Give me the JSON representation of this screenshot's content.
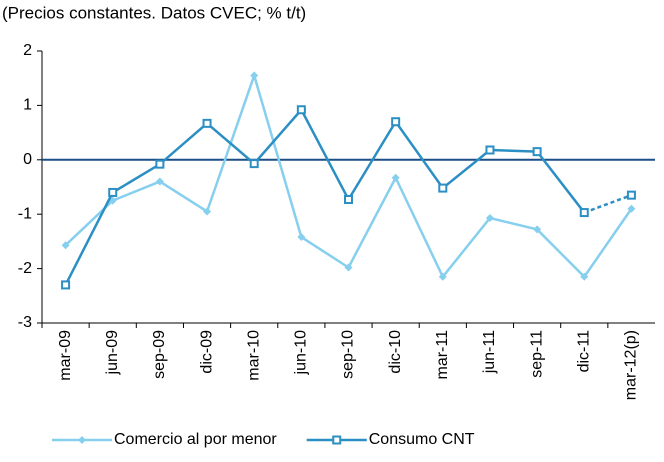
{
  "chart_data": {
    "type": "line",
    "subtitle": "(Precios constantes. Datos CVEC; % t/t)",
    "categories": [
      "mar-09",
      "jun-09",
      "sep-09",
      "dic-09",
      "mar-10",
      "jun-10",
      "sep-10",
      "dic-10",
      "mar-11",
      "jun-11",
      "sep-11",
      "dic-11",
      "mar-12(p)"
    ],
    "series": [
      {
        "name": "Comercio al por menor",
        "color": "#86cfee",
        "marker": "diamond",
        "values": [
          -1.57,
          -0.75,
          -0.4,
          -0.95,
          1.55,
          -1.42,
          -1.98,
          -0.33,
          -2.15,
          -1.07,
          -1.28,
          -2.15,
          -0.9
        ]
      },
      {
        "name": "Consumo CNT",
        "color": "#2b8fc4",
        "marker": "square",
        "dashed_last_segment": true,
        "values": [
          -2.3,
          -0.6,
          -0.08,
          0.67,
          -0.07,
          0.92,
          -0.73,
          0.7,
          -0.52,
          0.18,
          0.15,
          -0.97,
          -0.65
        ]
      }
    ],
    "ylim": [
      -3,
      2
    ],
    "yticks": [
      -3,
      -2,
      -1,
      0,
      1,
      2
    ],
    "zero_line": true,
    "legend": "bottom"
  }
}
